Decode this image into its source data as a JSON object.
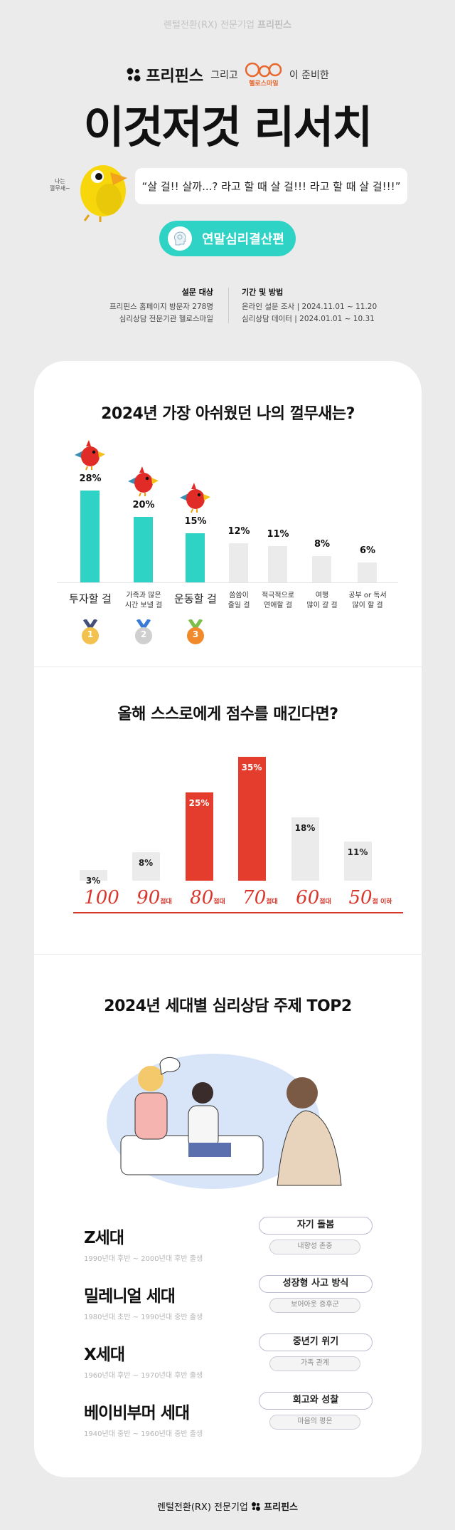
{
  "header": {
    "tagline": "렌털전환(RX) 전문기업",
    "brand": "프리핀스",
    "and": "그리고",
    "partner": "헬로스마일",
    "prepared": "이 준비한",
    "title": "이것저것 리서치"
  },
  "mascot": {
    "note": "나는\n껄무새~",
    "quote": "“살 걸!! 살까...? 라고 할 때 살 걸!!! 라고 할 때 살 걸!!!”"
  },
  "badge": {
    "label": "연말심리결산편",
    "icon": "head-brain-icon"
  },
  "survey": {
    "target_heading": "설문 대상",
    "target_lines": [
      "프리핀스 홈페이지 방문자 278명",
      "심리상담 전문기관 헬로스마일"
    ],
    "period_heading": "기간 및 방법",
    "period_lines": [
      "온라인 설문 조사 | 2024.11.01 ~ 11.20",
      "심리상담 데이터 | 2024.01.01 ~ 10.31"
    ]
  },
  "colors": {
    "teal": "#2fd3c6",
    "red": "#e43d2d",
    "gray": "#ebebeb",
    "background": "#ebebeb"
  },
  "chart_data": [
    {
      "type": "bar",
      "title": "2024년 가장 아쉬웠던 나의 껄무새는?",
      "categories": [
        "투자할 걸",
        "가족과 많은\n시간 보낼 걸",
        "운동할 걸",
        "씀씀이\n줄일 걸",
        "적극적으로\n연애할 걸",
        "여행\n많이 갈 걸",
        "공부 or 독서\n많이 할 걸"
      ],
      "values": [
        28,
        20,
        15,
        12,
        11,
        8,
        6
      ],
      "labels": [
        "28%",
        "20%",
        "15%",
        "12%",
        "11%",
        "8%",
        "6%"
      ],
      "highlighted": [
        true,
        true,
        true,
        false,
        false,
        false,
        false
      ],
      "medals": [
        "1",
        "2",
        "3"
      ]
    },
    {
      "type": "bar",
      "title": "올해 스스로에게 점수를 매긴다면?",
      "categories": [
        {
          "score": "100",
          "suffix": ""
        },
        {
          "score": "90",
          "suffix": "점대"
        },
        {
          "score": "80",
          "suffix": "점대"
        },
        {
          "score": "70",
          "suffix": "점대"
        },
        {
          "score": "60",
          "suffix": "점대"
        },
        {
          "score": "50",
          "suffix": "점 이하"
        }
      ],
      "values": [
        3,
        8,
        25,
        35,
        18,
        11
      ],
      "labels": [
        "3%",
        "8%",
        "25%",
        "35%",
        "18%",
        "11%"
      ],
      "highlighted": [
        false,
        false,
        true,
        true,
        false,
        false
      ]
    }
  ],
  "generations": {
    "title": "2024년 세대별 심리상담 주제 TOP2",
    "items": [
      {
        "name": "Z세대",
        "years": "1990년대 후반 ~ 2000년대 후반 출생",
        "top1": "자기 돌봄",
        "top2": "내향성 존중"
      },
      {
        "name": "밀레니얼 세대",
        "years": "1980년대 초반 ~ 1990년대 중반 출생",
        "top1": "성장형 사고 방식",
        "top2": "보어아웃 증후군"
      },
      {
        "name": "X세대",
        "years": "1960년대 후반 ~ 1970년대 후반 출생",
        "top1": "중년기 위기",
        "top2": "가족 관계"
      },
      {
        "name": "베이비부머 세대",
        "years": "1940년대 중반 ~ 1960년대 중반 출생",
        "top1": "회고와 성찰",
        "top2": "마음의 평온"
      }
    ]
  },
  "footer": {
    "tagline": "렌털전환(RX) 전문기업",
    "brand": "프리핀스"
  }
}
